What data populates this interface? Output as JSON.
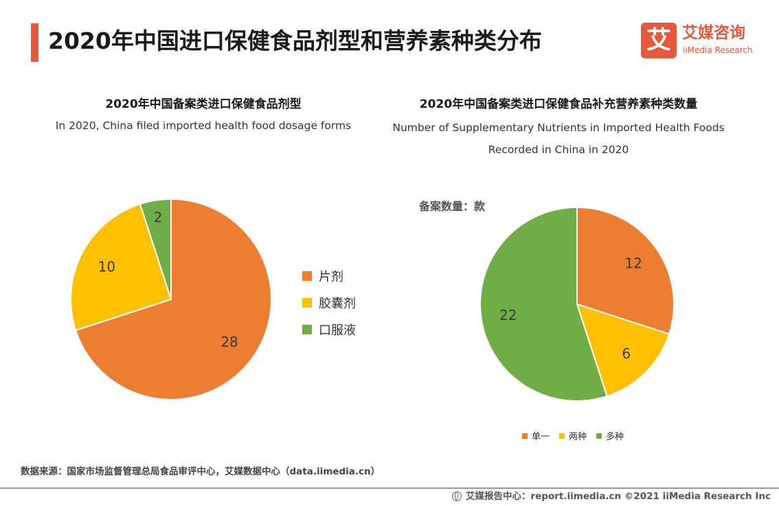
{
  "page": {
    "title": "2020年中国进口保健食品剂型和营养素种类分布"
  },
  "logo": {
    "mark": "艾",
    "name_cn": "艾媒咨询",
    "name_en": "iiMedia Research",
    "icon": "iimedia-logo-icon"
  },
  "colors": {
    "accent": "#e8583a",
    "orange": "#ed7d31",
    "yellow": "#ffc000",
    "green": "#70ad47"
  },
  "chart_data": [
    {
      "type": "pie",
      "title": "2020年中国备案类进口保健食品剂型",
      "subtitle": "In 2020, China filed imported health food dosage forms",
      "categories": [
        "片剂",
        "胶囊剂",
        "口服液"
      ],
      "values": [
        28,
        10,
        2
      ],
      "colors": [
        "#ed7d31",
        "#ffc000",
        "#70ad47"
      ],
      "legend_position": "right"
    },
    {
      "type": "pie",
      "title": "2020年中国备案类进口保健食品补充营养素种类数量",
      "subtitle": "Number of Supplementary Nutrients in Imported Health Foods Recorded in China in 2020",
      "unit_label": "备案数量：款",
      "categories": [
        "单一",
        "两种",
        "多种"
      ],
      "values": [
        12,
        6,
        22
      ],
      "colors": [
        "#ed7d31",
        "#ffc000",
        "#70ad47"
      ],
      "legend_position": "bottom"
    }
  ],
  "footer": {
    "source": "数据来源：国家市场监督管理总局食品审评中心，艾媒数据中心（data.iimedia.cn）",
    "brand": "艾媒报告中心：report.iimedia.cn  ©2021  iiMedia Research  Inc",
    "icon": "globe-icon"
  }
}
